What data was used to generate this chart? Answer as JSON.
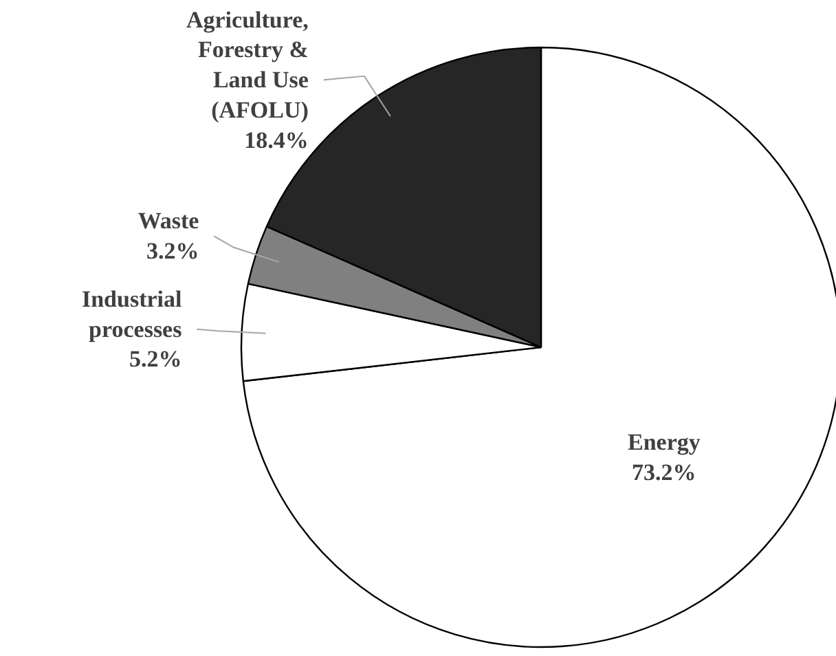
{
  "chart_data": {
    "type": "pie",
    "categories": [
      "Energy",
      "Industrial processes",
      "Waste",
      "Agriculture, Forestry & Land Use (AFOLU)"
    ],
    "values": [
      73.2,
      5.2,
      3.2,
      18.4
    ],
    "value_labels": [
      "73.2%",
      "5.2%",
      "3.2%",
      "18.4%"
    ],
    "colors": [
      "#ffffff",
      "#ffffff",
      "#808080",
      "#262626"
    ],
    "legend": false
  }
}
